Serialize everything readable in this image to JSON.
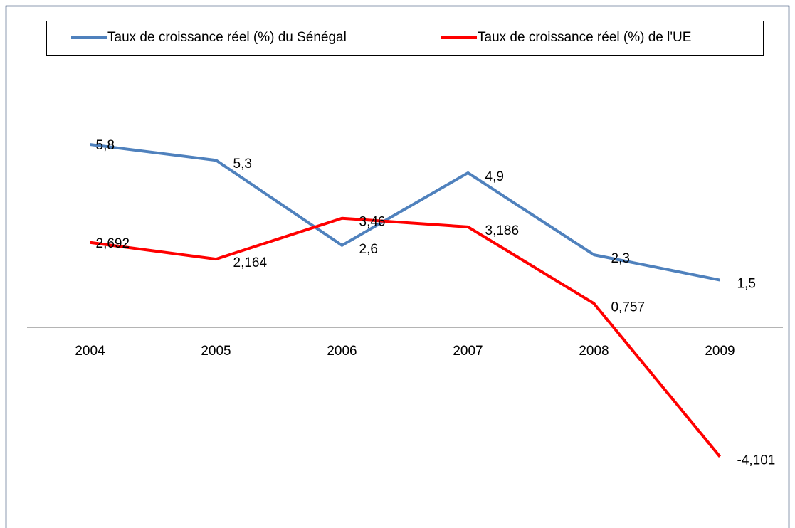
{
  "chart_data": {
    "type": "line",
    "categories": [
      "2004",
      "2005",
      "2006",
      "2007",
      "2008",
      "2009"
    ],
    "series": [
      {
        "name": "Taux de croissance réel (%) du Sénégal",
        "color": "#4f81bd",
        "values": [
          5.8,
          5.3,
          2.6,
          4.9,
          2.3,
          1.5
        ],
        "value_labels": [
          "5,8",
          "5,3",
          "2,6",
          "4,9",
          "2,3",
          "1,5"
        ]
      },
      {
        "name": "Taux de croissance réel (%) de l'UE",
        "color": "#ff0000",
        "values": [
          2.692,
          2.164,
          3.46,
          3.186,
          0.757,
          -4.101
        ],
        "value_labels": [
          "2,692",
          "2,164",
          "3,46",
          "3,186",
          "0,757",
          "-4,101"
        ]
      }
    ],
    "ylim": [
      -6,
      8
    ],
    "legend": "top"
  }
}
